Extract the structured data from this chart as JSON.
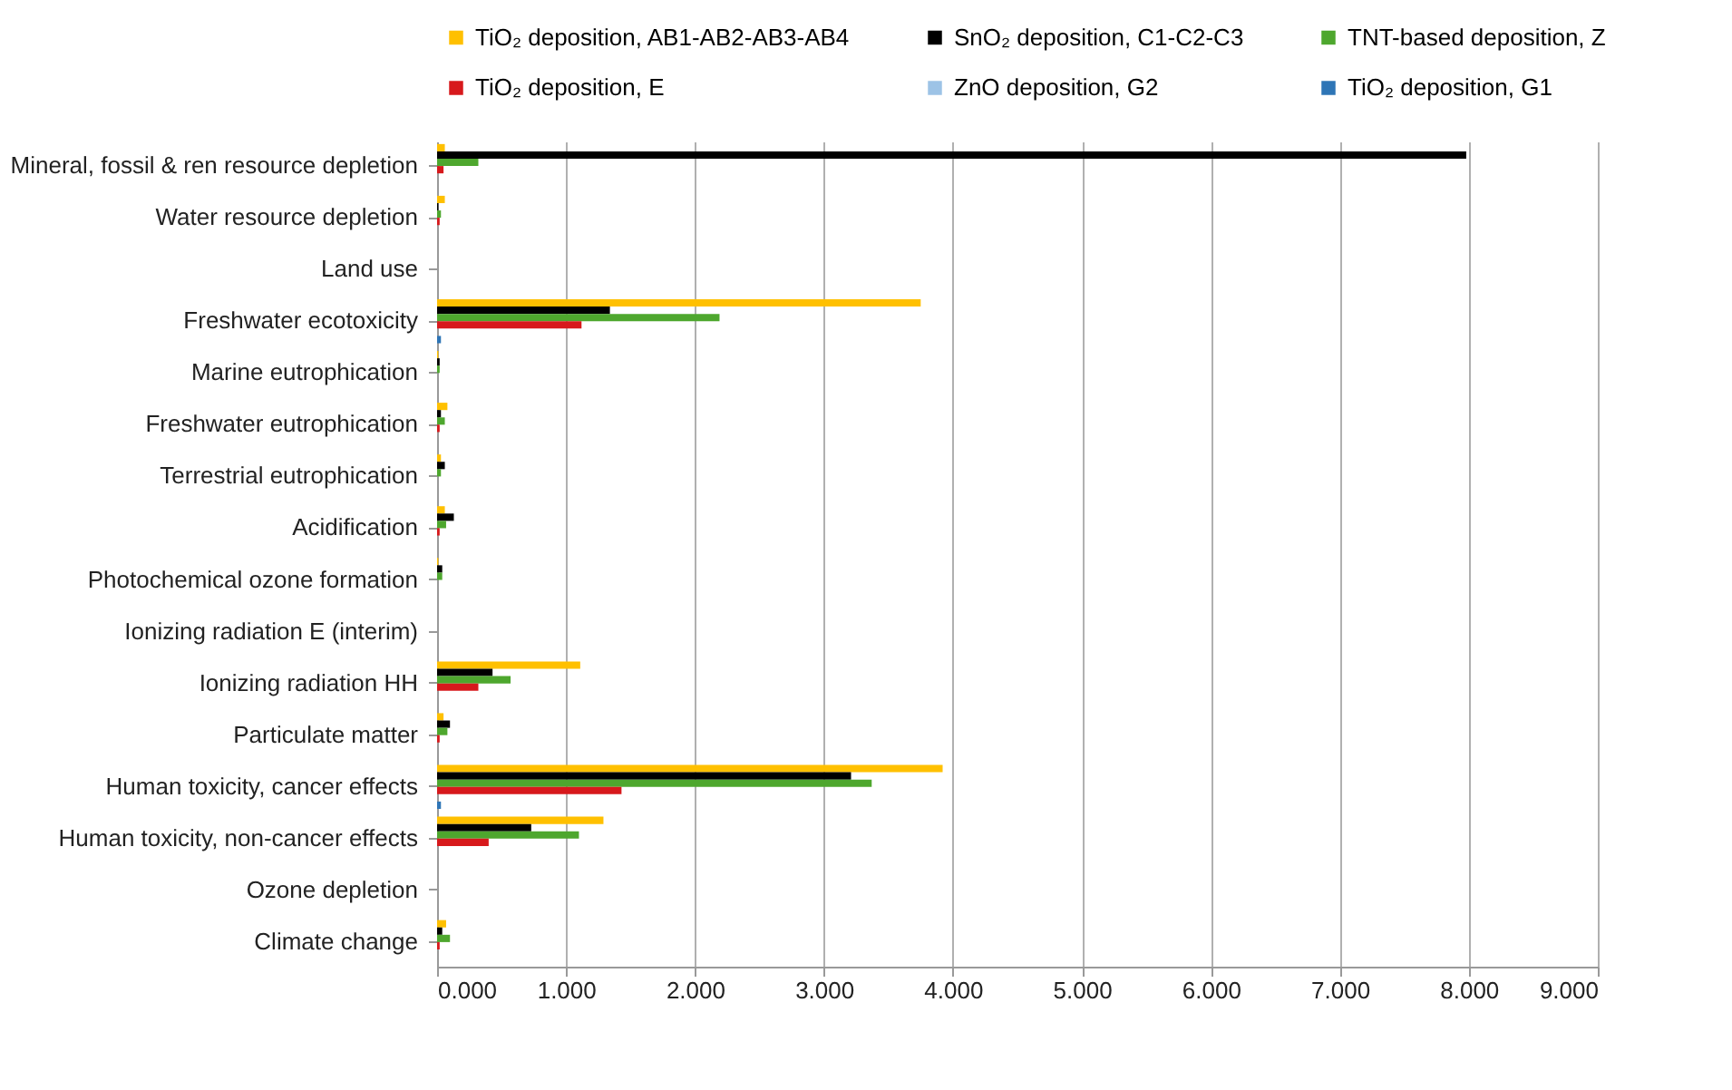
{
  "chart_data": {
    "type": "bar",
    "orientation": "horizontal",
    "categories": [
      "Mineral, fossil & ren resource depletion",
      "Water resource depletion",
      "Land use",
      "Freshwater ecotoxicity",
      "Marine eutrophication",
      "Freshwater eutrophication",
      "Terrestrial eutrophication",
      "Acidification",
      "Photochemical ozone formation",
      "Ionizing radiation E (interim)",
      "Ionizing radiation HH",
      "Particulate matter",
      "Human toxicity, cancer effects",
      "Human toxicity, non-cancer effects",
      "Ozone depletion",
      "Climate change"
    ],
    "series": [
      {
        "name": "TiO₂ deposition, AB1-AB2-AB3-AB4",
        "color": "#ffc000",
        "values": [
          0.06,
          0.06,
          0,
          3.75,
          0.01,
          0.08,
          0.03,
          0.06,
          0.01,
          0,
          1.11,
          0.05,
          3.92,
          1.29,
          0,
          0.07
        ]
      },
      {
        "name": "SnO₂ deposition, C1-C2-C3",
        "color": "#000000",
        "values": [
          7.98,
          0.01,
          0,
          1.34,
          0.02,
          0.03,
          0.06,
          0.13,
          0.04,
          0,
          0.43,
          0.1,
          3.21,
          0.73,
          0,
          0.04
        ]
      },
      {
        "name": "TNT-based deposition, Z",
        "color": "#4ea72e",
        "values": [
          0.32,
          0.03,
          0,
          2.19,
          0.02,
          0.06,
          0.03,
          0.07,
          0.04,
          0,
          0.57,
          0.08,
          3.37,
          1.1,
          0,
          0.1
        ]
      },
      {
        "name": "TiO₂ deposition, E",
        "color": "#d7191c",
        "values": [
          0.05,
          0.02,
          0,
          1.12,
          0,
          0.02,
          0,
          0.02,
          0,
          0,
          0.32,
          0.02,
          1.43,
          0.4,
          0,
          0.02
        ]
      },
      {
        "name": "ZnO deposition, G2",
        "color": "#9dc3e6",
        "values": [
          0,
          0,
          0,
          0,
          0,
          0,
          0,
          0,
          0,
          0,
          0,
          0,
          0,
          0,
          0,
          0
        ]
      },
      {
        "name": "TiO₂ deposition, G1",
        "color": "#2e75b6",
        "values": [
          0,
          0,
          0,
          0.03,
          0,
          0,
          0,
          0,
          0,
          0,
          0,
          0,
          0.03,
          0,
          0,
          0
        ]
      }
    ],
    "xlim": [
      0,
      9
    ],
    "xticks": [
      {
        "value": 0,
        "label": "0.000"
      },
      {
        "value": 1,
        "label": "1.000"
      },
      {
        "value": 2,
        "label": "2.000"
      },
      {
        "value": 3,
        "label": "3.000"
      },
      {
        "value": 4,
        "label": "4.000"
      },
      {
        "value": 5,
        "label": "5.000"
      },
      {
        "value": 6,
        "label": "6.000"
      },
      {
        "value": 7,
        "label": "7.000"
      },
      {
        "value": 8,
        "label": "8.000"
      },
      {
        "value": 9,
        "label": "9.000"
      }
    ],
    "grid": "x",
    "legend": "top"
  }
}
